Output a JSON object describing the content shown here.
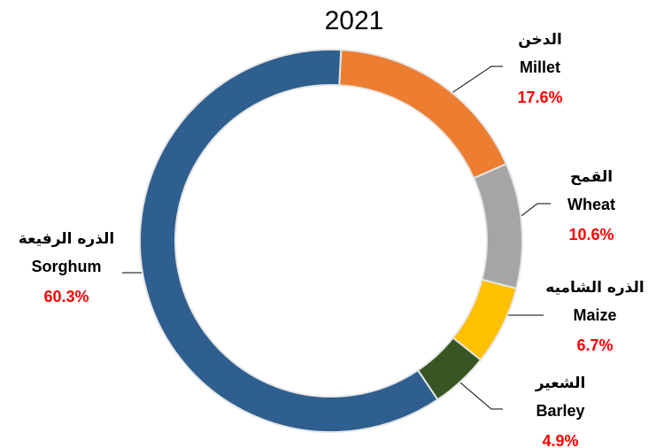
{
  "chart_data": {
    "type": "donut",
    "title": "2021",
    "categories": [
      "Millet",
      "Wheat",
      "Maize",
      "Barley",
      "Sorghum"
    ],
    "categories_ar": [
      "الدخن",
      "القمح",
      "الذره الشاميه",
      "الشعير",
      "الذره الرفيعة"
    ],
    "values": [
      17.6,
      10.6,
      6.7,
      4.9,
      60.3
    ],
    "value_labels": [
      "17.6%",
      "10.6%",
      "6.7%",
      "4.9%",
      "60.3%"
    ],
    "colors": [
      "#ed7d31",
      "#a5a5a5",
      "#ffc000",
      "#375623",
      "#2e5f8f"
    ]
  }
}
